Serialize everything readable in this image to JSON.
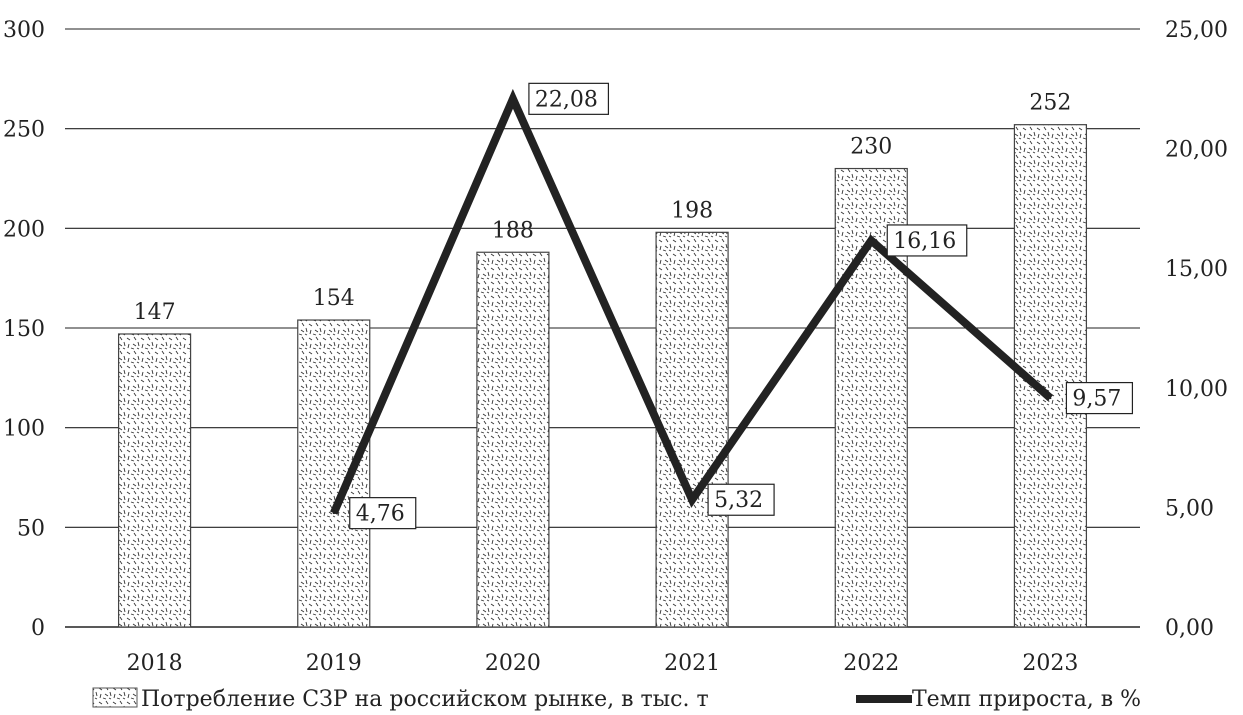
{
  "chart_data": {
    "type": "bar",
    "categories": [
      "2018",
      "2019",
      "2020",
      "2021",
      "2022",
      "2023"
    ],
    "series": [
      {
        "name": "Потребление СЗР на российском рынке, в тыс. т",
        "type": "bar",
        "axis": "left",
        "values": [
          147,
          154,
          188,
          198,
          230,
          252
        ],
        "labels": [
          "147",
          "154",
          "188",
          "198",
          "230",
          "252"
        ]
      },
      {
        "name": "Темп прироста, в %",
        "type": "line",
        "axis": "right",
        "values": [
          null,
          4.76,
          22.08,
          5.32,
          16.16,
          9.57
        ],
        "labels": [
          "",
          "4,76",
          "22,08",
          "5,32",
          "16,16",
          "9,57"
        ]
      }
    ],
    "y_left": {
      "min": 0,
      "max": 300,
      "ticks": [
        "0",
        "50",
        "100",
        "150",
        "200",
        "250",
        "300"
      ]
    },
    "y_right": {
      "min": 0,
      "max": 25,
      "ticks": [
        "0,00",
        "5,00",
        "10,00",
        "15,00",
        "20,00",
        "25,00"
      ]
    },
    "grid": true,
    "legend_position": "bottom",
    "colors": {
      "bar_fill": "#ffffff",
      "bar_pattern": "#333333",
      "line": "#222222",
      "grid": "#222222"
    }
  }
}
